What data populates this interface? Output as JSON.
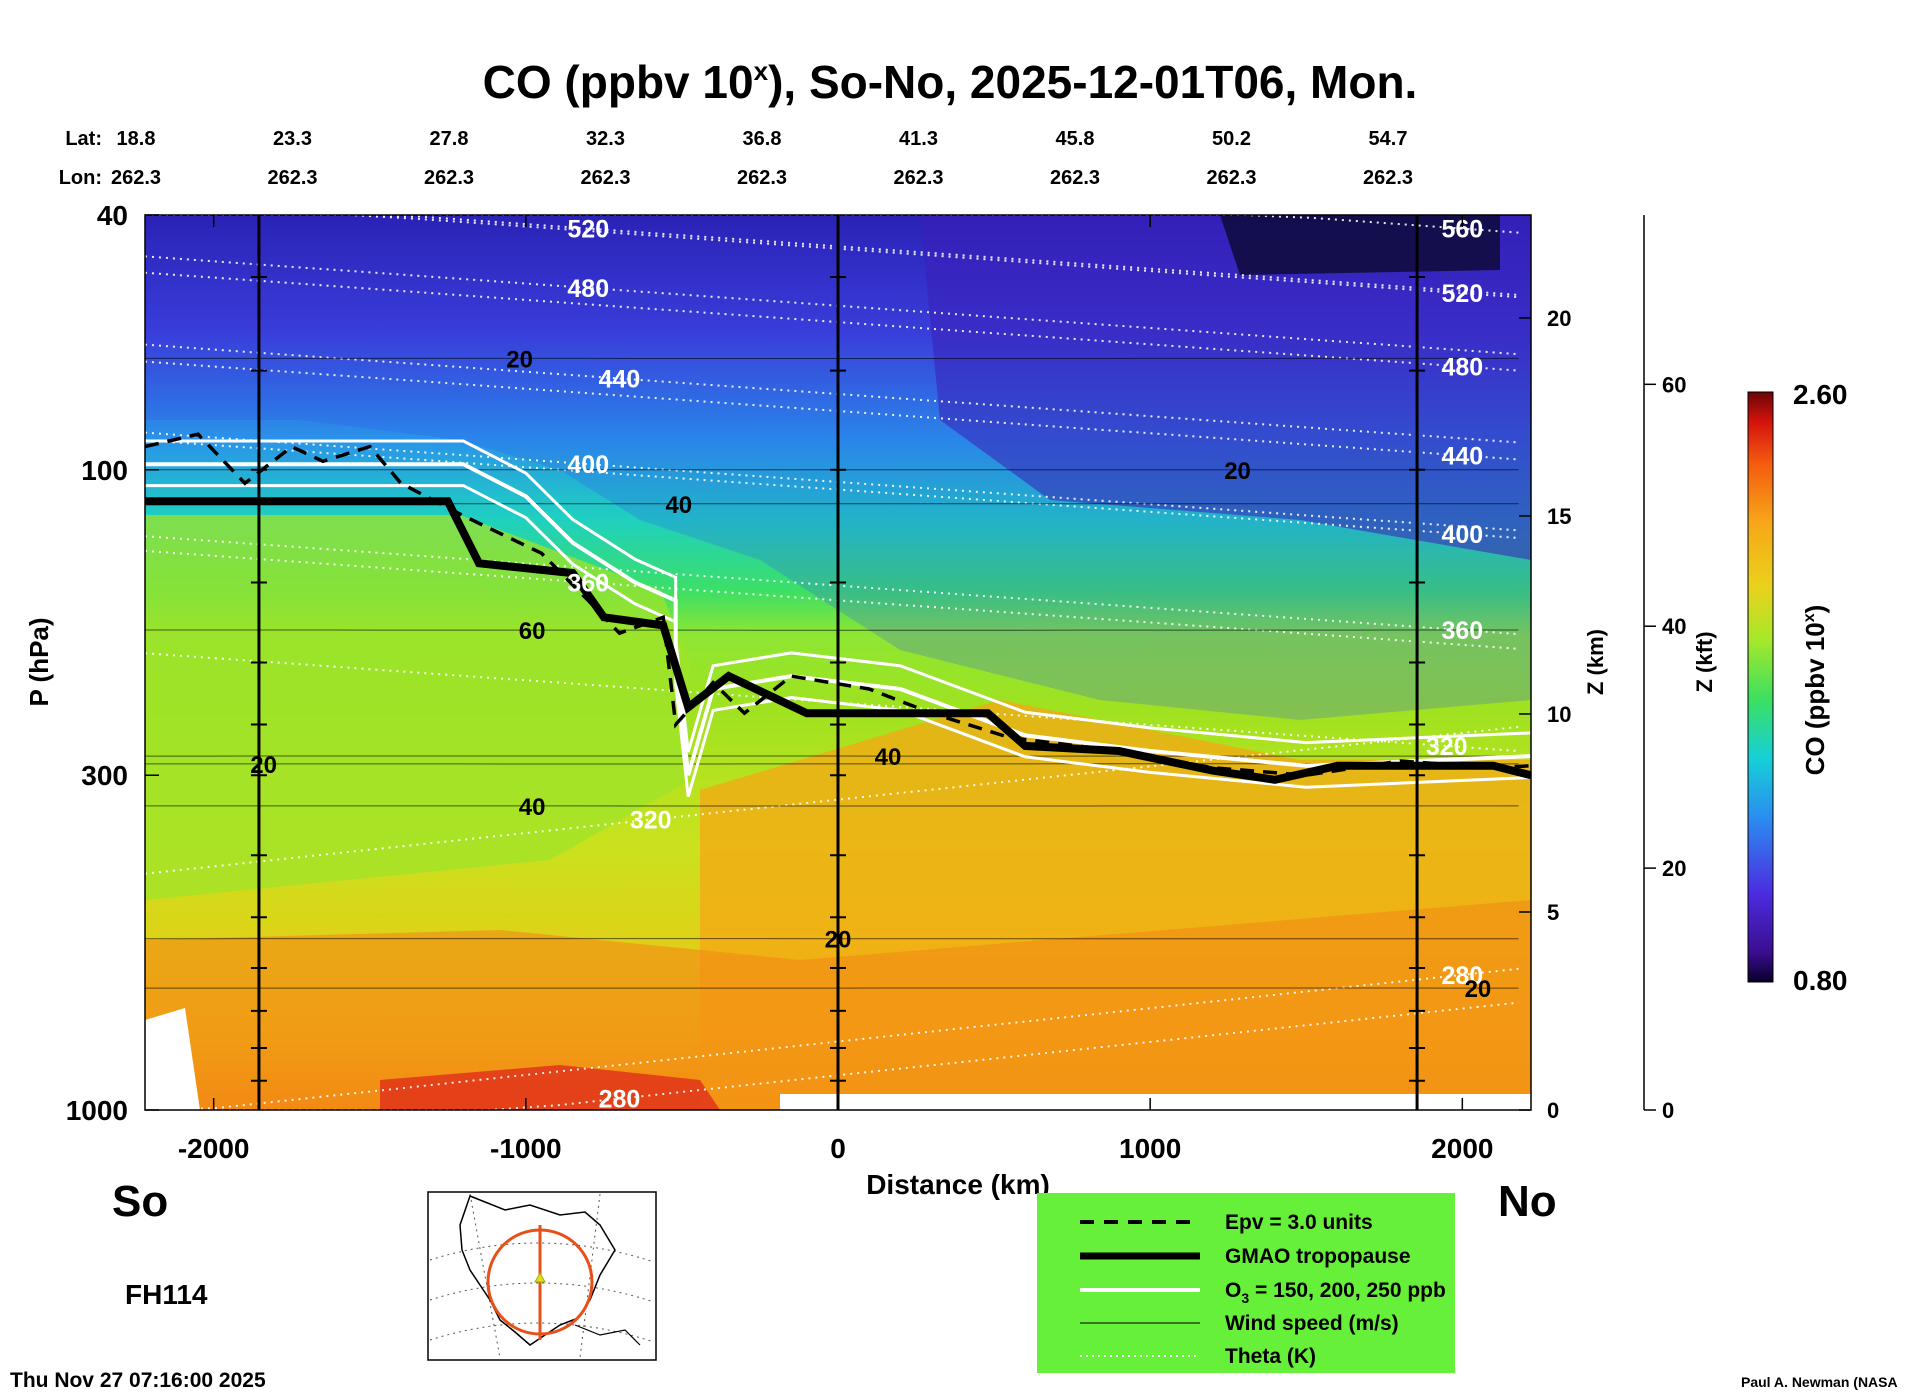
{
  "chart_data": {
    "type": "heatmap",
    "title_prefix": "CO (ppbv 10",
    "title_sup": "x",
    "title_suffix": "), So-No, 2025-12-01T06, Mon.",
    "lat_label": "Lat:",
    "lon_label": "Lon:",
    "lat_values": [
      "18.8",
      "23.3",
      "27.8",
      "32.3",
      "36.8",
      "41.3",
      "45.8",
      "50.2",
      "54.7"
    ],
    "lon_values": [
      "262.3",
      "262.3",
      "262.3",
      "262.3",
      "262.3",
      "262.3",
      "262.3",
      "262.3",
      "262.3"
    ],
    "x_axis": {
      "label": "Distance (km)",
      "range": [
        -2220,
        2220
      ],
      "ticks": [
        -2000,
        -1000,
        0,
        1000,
        2000
      ],
      "tick_labels": [
        "-2000",
        "-1000",
        "0",
        "1000",
        "2000"
      ]
    },
    "y_axis": {
      "label": "P (hPa)",
      "scale": "log",
      "range": [
        1000,
        40
      ],
      "ticks": [
        1000,
        300,
        100,
        40
      ],
      "tick_labels": [
        "1000",
        "300",
        "100",
        "40"
      ]
    },
    "z_km_axis": {
      "label": "Z (km)",
      "ticks": [
        0,
        5,
        10,
        15,
        20
      ],
      "tick_labels": [
        "0",
        "5",
        "10",
        "15",
        "20"
      ]
    },
    "z_kft_axis": {
      "label": "Z (kft)",
      "ticks": [
        0,
        20,
        40,
        60
      ],
      "tick_labels": [
        "0",
        "20",
        "40",
        "60"
      ]
    },
    "colorbar": {
      "label_prefix": "CO (ppbv 10",
      "label_sup": "x",
      "label_suffix": ")",
      "min": 0.8,
      "max": 2.6,
      "min_label": "0.80",
      "max_label": "2.60"
    },
    "theta_labels": [
      {
        "text": "520",
        "x_km": -800,
        "p": 42
      },
      {
        "text": "480",
        "x_km": -800,
        "p": 52
      },
      {
        "text": "440",
        "x_km": -700,
        "p": 72
      },
      {
        "text": "400",
        "x_km": -800,
        "p": 98
      },
      {
        "text": "360",
        "x_km": -800,
        "p": 150
      },
      {
        "text": "320",
        "x_km": -600,
        "p": 352
      },
      {
        "text": "280",
        "x_km": -700,
        "p": 960
      },
      {
        "text": "560",
        "x_km": 2000,
        "p": 42
      },
      {
        "text": "520",
        "x_km": 2000,
        "p": 53
      },
      {
        "text": "480",
        "x_km": 2000,
        "p": 69
      },
      {
        "text": "440",
        "x_km": 2000,
        "p": 95
      },
      {
        "text": "400",
        "x_km": 2000,
        "p": 126
      },
      {
        "text": "360",
        "x_km": 2000,
        "p": 178
      },
      {
        "text": "320",
        "x_km": 1950,
        "p": 270
      },
      {
        "text": "280",
        "x_km": 2000,
        "p": 615
      }
    ],
    "wind_labels": [
      {
        "text": "20",
        "x_km": -1020,
        "p": 67
      },
      {
        "text": "40",
        "x_km": -510,
        "p": 113
      },
      {
        "text": "60",
        "x_km": -980,
        "p": 178
      },
      {
        "text": "20",
        "x_km": -1840,
        "p": 288
      },
      {
        "text": "40",
        "x_km": -980,
        "p": 335
      },
      {
        "text": "40",
        "x_km": 160,
        "p": 280
      },
      {
        "text": "20",
        "x_km": 0,
        "p": 540
      },
      {
        "text": "20",
        "x_km": 1280,
        "p": 100
      },
      {
        "text": "20",
        "x_km": 2050,
        "p": 645
      }
    ],
    "tropopause_p": [
      [
        -2220,
        112
      ],
      [
        -1250,
        112
      ],
      [
        -1150,
        140
      ],
      [
        -850,
        145
      ],
      [
        -750,
        170
      ],
      [
        -560,
        175
      ],
      [
        -480,
        235
      ],
      [
        -350,
        210
      ],
      [
        -100,
        240
      ],
      [
        480,
        240
      ],
      [
        600,
        270
      ],
      [
        900,
        275
      ],
      [
        1200,
        295
      ],
      [
        1400,
        305
      ],
      [
        1600,
        290
      ],
      [
        1800,
        290
      ],
      [
        2100,
        290
      ],
      [
        2220,
        300
      ]
    ],
    "o3_p": [
      [
        -2220,
        98
      ],
      [
        -1200,
        98
      ],
      [
        -1000,
        110
      ],
      [
        -850,
        130
      ],
      [
        -650,
        150
      ],
      [
        -520,
        160
      ],
      [
        -520,
        200
      ],
      [
        -480,
        300
      ],
      [
        -400,
        220
      ],
      [
        -150,
        210
      ],
      [
        200,
        220
      ],
      [
        600,
        260
      ],
      [
        1000,
        275
      ],
      [
        1500,
        290
      ],
      [
        2220,
        280
      ]
    ],
    "epv_p": [
      [
        -2220,
        92
      ],
      [
        -2050,
        88
      ],
      [
        -1900,
        105
      ],
      [
        -1750,
        92
      ],
      [
        -1650,
        97
      ],
      [
        -1500,
        92
      ],
      [
        -1400,
        105
      ],
      [
        -1200,
        118
      ],
      [
        -950,
        135
      ],
      [
        -800,
        160
      ],
      [
        -700,
        180
      ],
      [
        -560,
        170
      ],
      [
        -520,
        250
      ],
      [
        -400,
        215
      ],
      [
        -300,
        240
      ],
      [
        -150,
        210
      ],
      [
        100,
        220
      ],
      [
        300,
        240
      ],
      [
        550,
        262
      ],
      [
        900,
        275
      ],
      [
        1200,
        292
      ],
      [
        1500,
        300
      ],
      [
        1800,
        285
      ],
      [
        2100,
        292
      ],
      [
        2220,
        290
      ]
    ],
    "sample_locations_lat_lon": [
      [
        18.8,
        262.3
      ],
      [
        36.8,
        262.3
      ],
      [
        54.7,
        262.3
      ]
    ]
  },
  "labels": {
    "south": "So",
    "north": "No",
    "forecast_hour": "FH114",
    "timestamp": "Thu Nov 27 07:16:00 2025",
    "credit": "Paul A. Newman (NASA"
  },
  "legend": {
    "items": [
      {
        "text": "Epv = 3.0 units",
        "style": "dashed"
      },
      {
        "text": "GMAO tropopause",
        "style": "thick"
      },
      {
        "text_prefix": "O",
        "text_sub": "3",
        "text_suffix": " = 150, 200, 250 ppb",
        "style": "white"
      },
      {
        "text": "Wind speed (m/s)",
        "style": "thin"
      },
      {
        "text": "Theta (K)",
        "style": "dotted"
      }
    ],
    "background_color": "#66f03a"
  }
}
